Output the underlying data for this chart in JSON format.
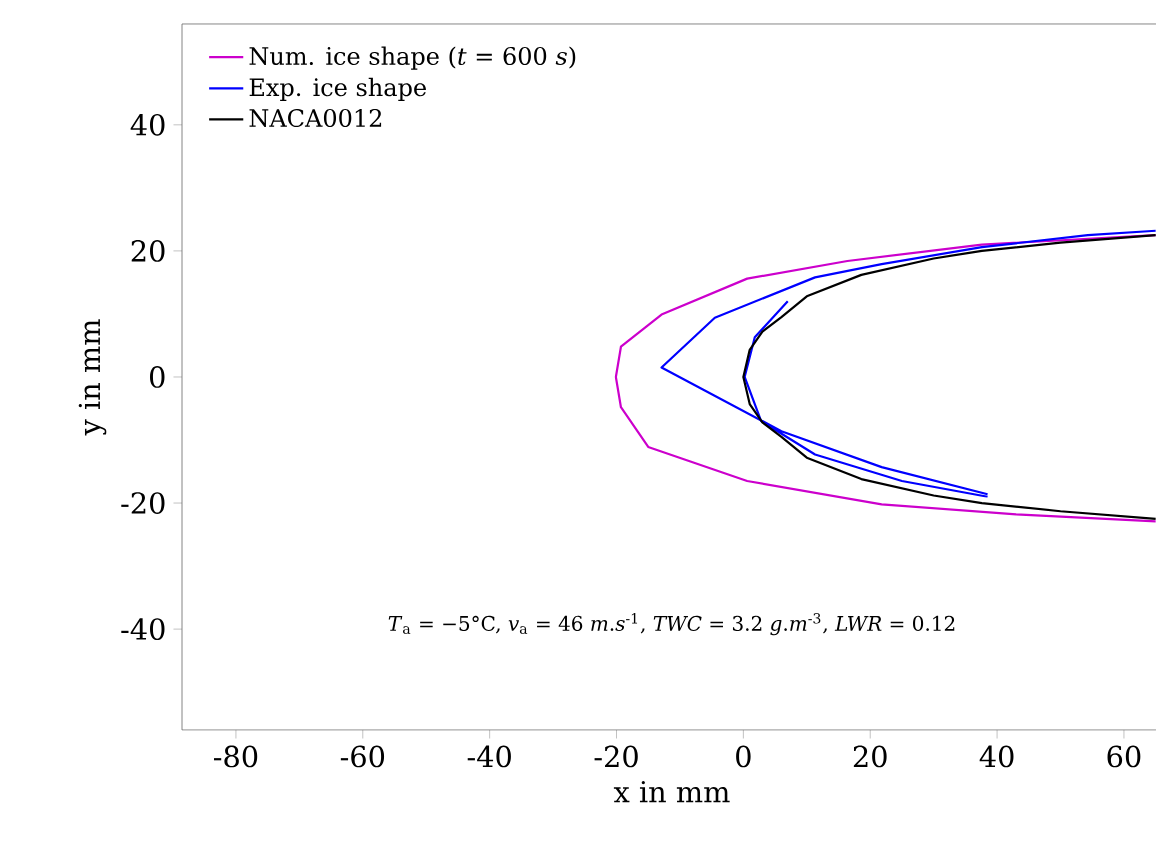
{
  "chart_data": {
    "type": "line",
    "xlabel": "x in mm",
    "ylabel": "y in mm",
    "xlim": [
      -88.5,
      66
    ],
    "ylim": [
      -56,
      56
    ],
    "xticks": [
      -80,
      -60,
      -40,
      -20,
      0,
      20,
      40,
      60
    ],
    "yticks": [
      -40,
      -20,
      0,
      20,
      40
    ],
    "legend": "top left",
    "grid": false,
    "marker": "none",
    "line_style": "solid",
    "annotations": [
      "*T*$_{a}$ = −5°C, *v*$_{a}$ = 46 *m*.*s*$^{-1}$, *TWC* = 3.2 *g*.*m*$^{-3}$, *LWR* = 0.12"
    ],
    "series": [
      {
        "name": "Num. ice shape (*t* = 600 *s*)",
        "color": "#cc00cc",
        "x": [
          65,
          37.6,
          16.4,
          0.6,
          -12.9,
          -19.3,
          -20.1,
          -19.3,
          -15,
          0.6,
          21.8,
          43,
          65
        ],
        "values": [
          22.5,
          21,
          18.4,
          15.6,
          9.9,
          4.8,
          0,
          -4.8,
          -11.1,
          -16.5,
          -20.2,
          -21.8,
          -22.9
        ]
      },
      {
        "name": "Exp. ice shape",
        "color": "#0000ff",
        "x": [
          65,
          54.3,
          37.6,
          21.8,
          11.3,
          -4.5,
          -12.9,
          6,
          21.8,
          38.5,
          null,
          7,
          1.8,
          0.2,
          2.8,
          11.3,
          25,
          38.5
        ],
        "values": [
          23.2,
          22.5,
          20.6,
          17.9,
          15.8,
          9.4,
          1.5,
          -8.6,
          -14.3,
          -18.6,
          null,
          12,
          6.3,
          0,
          -7,
          -12.3,
          -16.5,
          -19
        ]
      },
      {
        "name": "NACA0012",
        "color": "#000000",
        "x": [
          65,
          50,
          37.6,
          30,
          18.6,
          10,
          6,
          3,
          1,
          0,
          1,
          3,
          6,
          10,
          18.6,
          30,
          37.6,
          50,
          65
        ],
        "values": [
          22.5,
          21.3,
          20,
          18.8,
          16.2,
          12.8,
          9.5,
          7.2,
          4.3,
          0,
          -4.3,
          -7.2,
          -9.5,
          -12.8,
          -16.2,
          -18.8,
          -20,
          -21.3,
          -22.5
        ]
      }
    ]
  }
}
